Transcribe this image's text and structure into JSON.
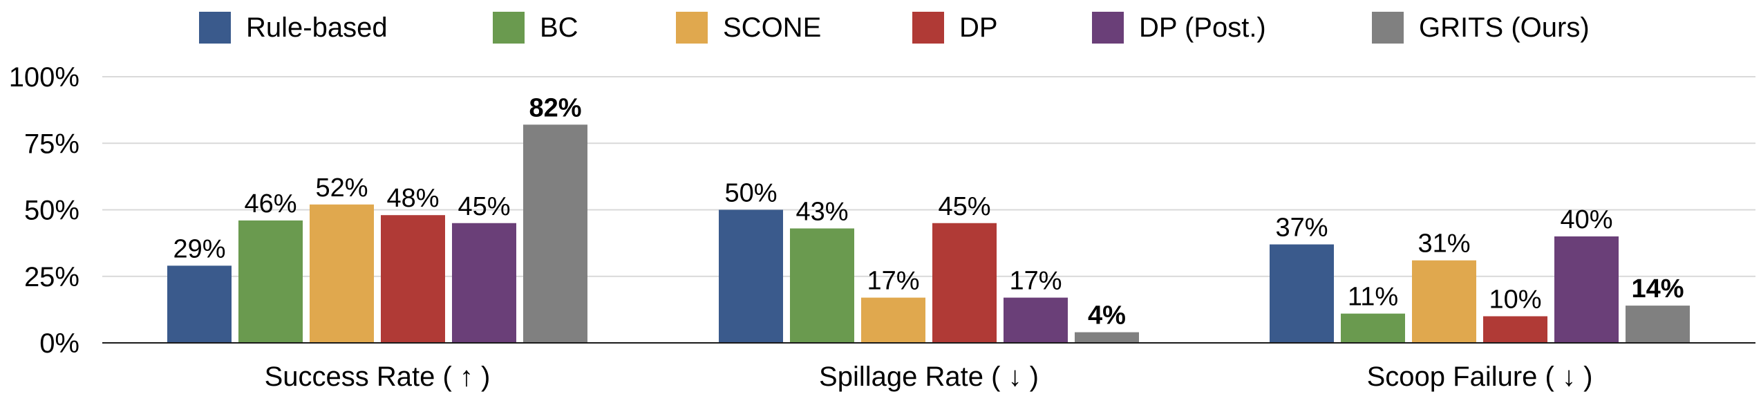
{
  "chart_data": {
    "type": "bar",
    "title": "",
    "xlabel": "",
    "ylabel": "",
    "ylim": [
      0,
      100
    ],
    "yticks": [
      0,
      25,
      50,
      75,
      100
    ],
    "ytick_labels": [
      "0%",
      "25%",
      "50%",
      "75%",
      "100%"
    ],
    "grid": true,
    "legend_position": "top",
    "categories": [
      "Success Rate ( ↑ )",
      "Spillage Rate ( ↓ )",
      "Scoop Failure ( ↓ )"
    ],
    "series": [
      {
        "name": "Rule-based",
        "color": "#3A5A8C",
        "values": [
          29,
          50,
          37
        ],
        "labels": [
          "29%",
          "50%",
          "37%"
        ],
        "bold": [
          false,
          false,
          false
        ]
      },
      {
        "name": "BC",
        "color": "#6A9A4F",
        "values": [
          46,
          43,
          11
        ],
        "labels": [
          "46%",
          "43%",
          "11%"
        ],
        "bold": [
          false,
          false,
          false
        ]
      },
      {
        "name": "SCONE",
        "color": "#E0A84E",
        "values": [
          52,
          17,
          31
        ],
        "labels": [
          "52%",
          "17%",
          "31%"
        ],
        "bold": [
          false,
          false,
          false
        ]
      },
      {
        "name": "DP",
        "color": "#B03A36",
        "values": [
          48,
          45,
          10
        ],
        "labels": [
          "48%",
          "45%",
          "10%"
        ],
        "bold": [
          false,
          false,
          false
        ]
      },
      {
        "name": "DP (Post.)",
        "color": "#6A3F78",
        "values": [
          45,
          17,
          40
        ],
        "labels": [
          "45%",
          "17%",
          "40%"
        ],
        "bold": [
          false,
          false,
          false
        ]
      },
      {
        "name": "GRITS (Ours)",
        "color": "#808080",
        "values": [
          82,
          4,
          14
        ],
        "labels": [
          "82%",
          "4%",
          "14%"
        ],
        "bold": [
          true,
          true,
          true
        ]
      }
    ]
  }
}
